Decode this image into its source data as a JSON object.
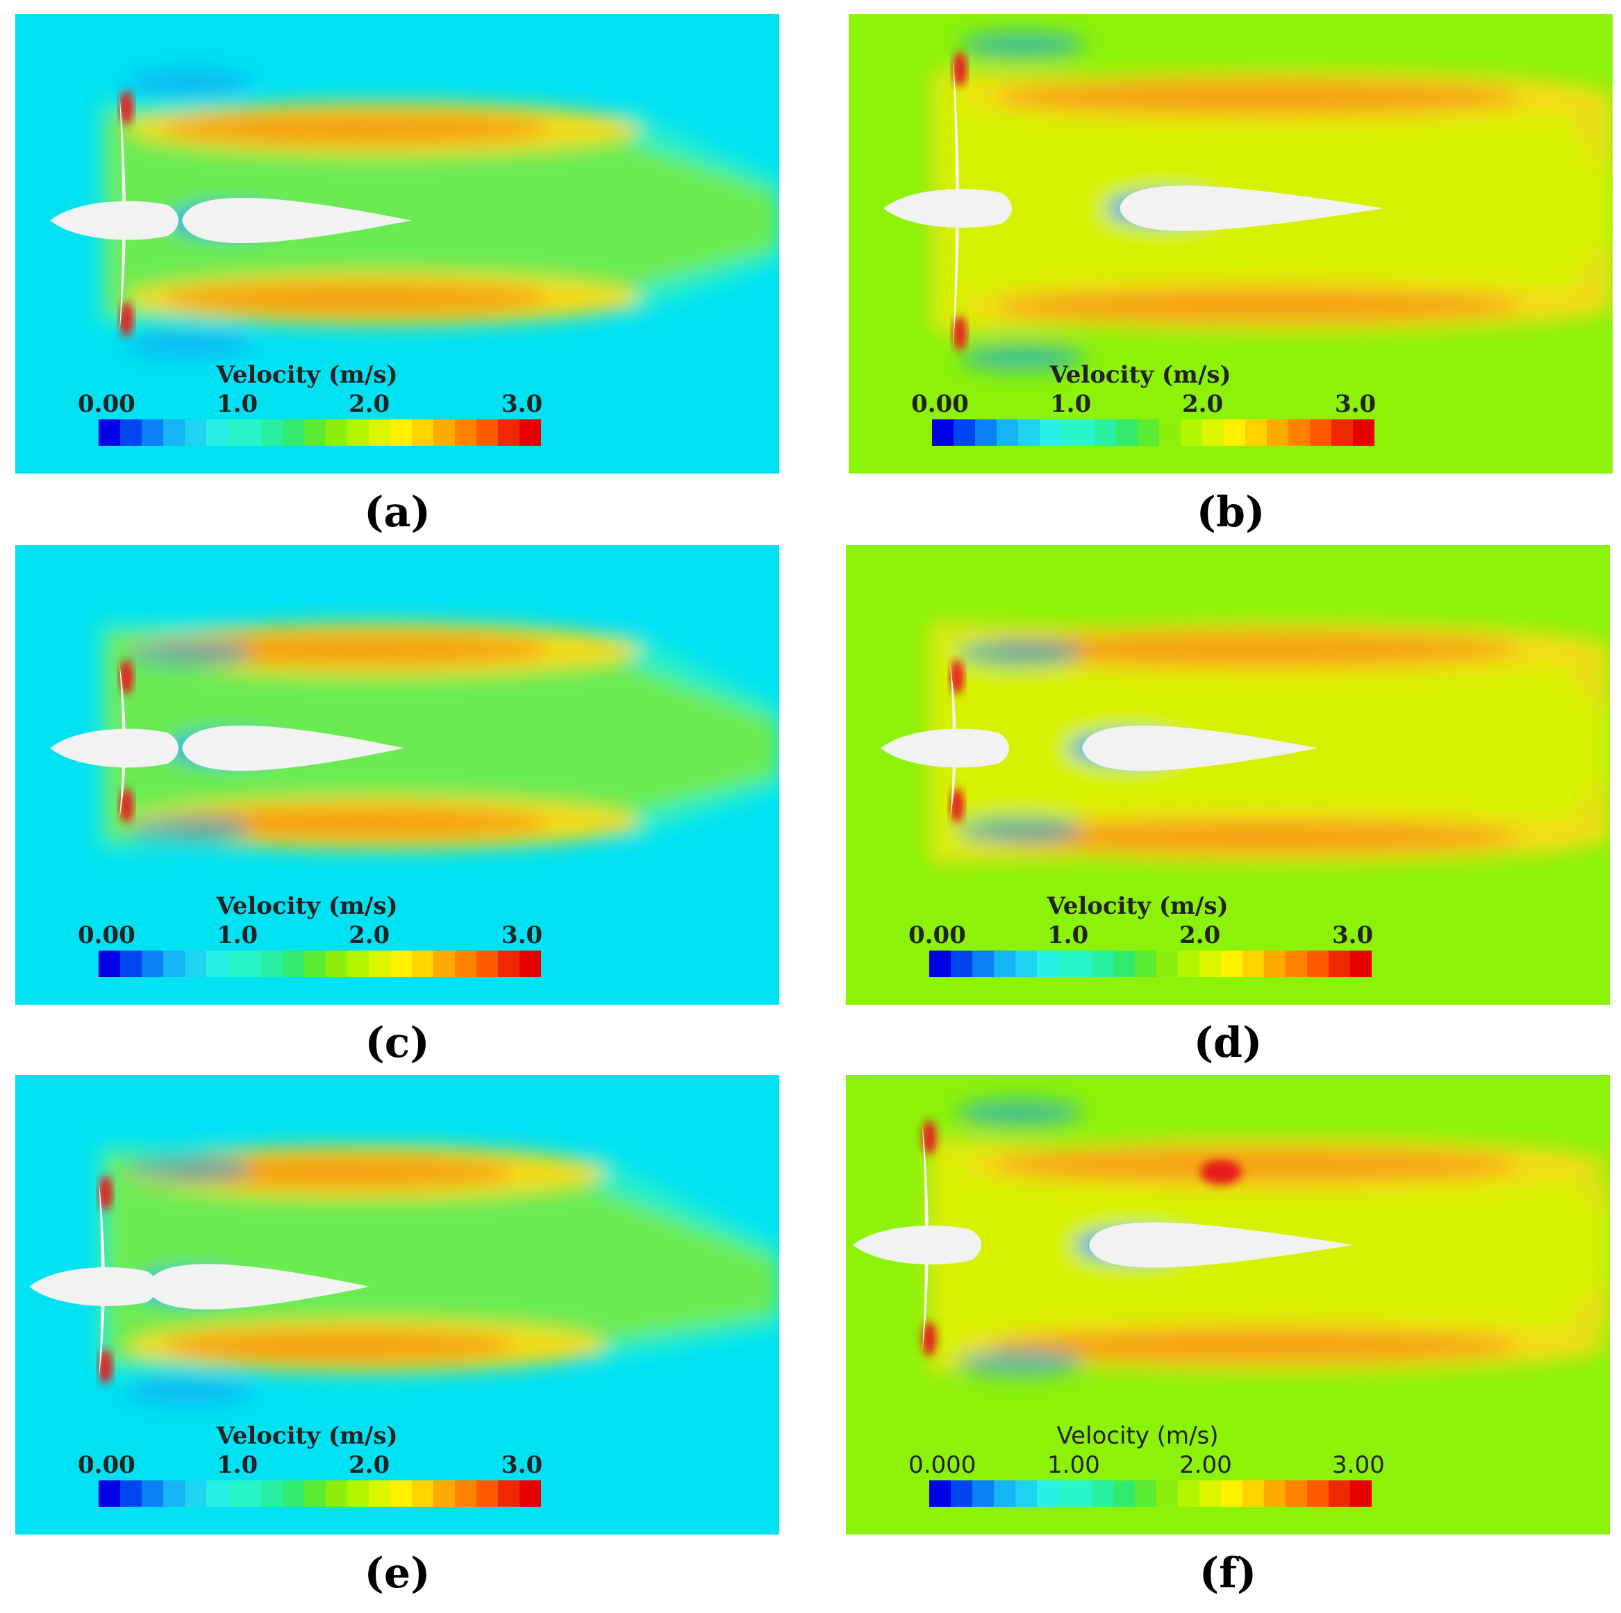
{
  "panels": [
    {
      "id": "a",
      "caption": "(a)",
      "legend_title": "Velocity (m/s)",
      "ticks": [
        "0.00",
        "1.0",
        "2.0",
        "3.0"
      ],
      "background": "#00e1f2"
    },
    {
      "id": "b",
      "caption": "(b)",
      "legend_title": "Velocity (m/s)",
      "ticks": [
        "0.00",
        "1.0",
        "2.0",
        "3.0"
      ],
      "background": "#8cf20a"
    },
    {
      "id": "c",
      "caption": "(c)",
      "legend_title": "Velocity (m/s)",
      "ticks": [
        "0.00",
        "1.0",
        "2.0",
        "3.0"
      ],
      "background": "#00e1f2"
    },
    {
      "id": "d",
      "caption": "(d)",
      "legend_title": "Velocity (m/s)",
      "ticks": [
        "0.00",
        "1.0",
        "2.0",
        "3.0"
      ],
      "background": "#8cf20a"
    },
    {
      "id": "e",
      "caption": "(e)",
      "legend_title": "Velocity (m/s)",
      "ticks": [
        "0.00",
        "1.0",
        "2.0",
        "3.0"
      ],
      "background": "#00e1f2"
    },
    {
      "id": "f",
      "caption": "(f)",
      "legend_title": "Velocity (m/s)",
      "ticks": [
        "0.000",
        "1.00",
        "2.00",
        "3.00"
      ],
      "background": "#8cf20a"
    }
  ],
  "colorbar": [
    "#0000e6",
    "#0046f0",
    "#0a82f5",
    "#14b4f5",
    "#1ed2f0",
    "#28f0e6",
    "#28f5c8",
    "#28f0a0",
    "#32eb6e",
    "#5aeb32",
    "#8cf00a",
    "#b4f500",
    "#dcf500",
    "#fff000",
    "#ffd200",
    "#ffaa00",
    "#ff8200",
    "#ff5a00",
    "#f02800",
    "#e60000"
  ],
  "colors": {
    "body": "#f2f2f2",
    "jet_core": "#f5a014",
    "jet_mid": "#f5dc14",
    "wake_low": "#14a0f0",
    "peak": "#e61e1e"
  }
}
